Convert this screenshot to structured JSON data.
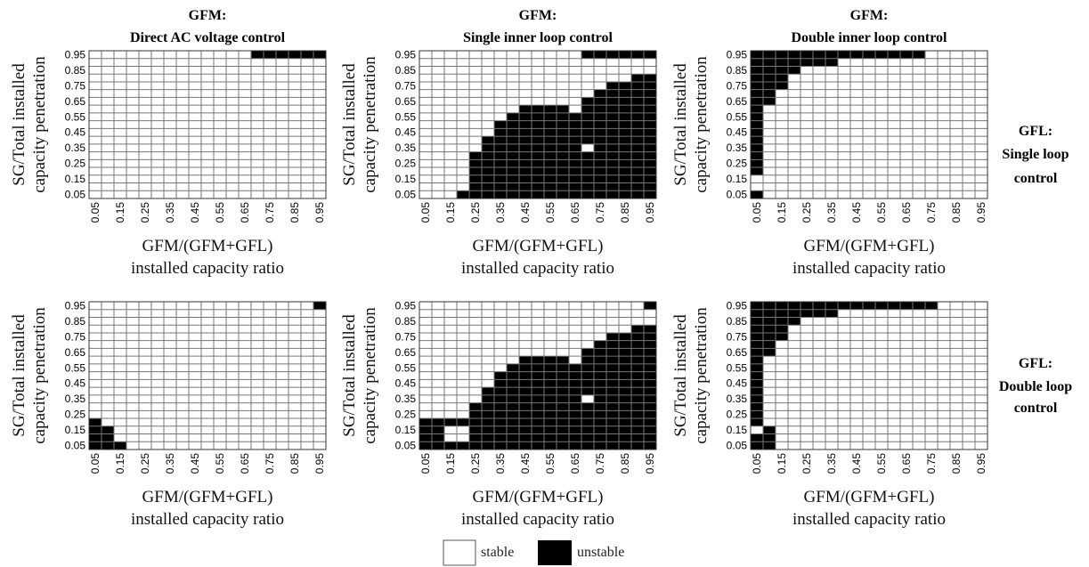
{
  "legend": {
    "stable": "stable",
    "unstable": "unstable"
  },
  "column_titles": [
    {
      "top": "GFM:",
      "bottom": "Direct AC voltage control"
    },
    {
      "top": "GFM:",
      "bottom": "Single inner loop control"
    },
    {
      "top": "GFM:",
      "bottom": "Double inner loop control"
    }
  ],
  "row_titles": [
    {
      "lines": [
        "GFL:",
        "Single loop",
        "control"
      ]
    },
    {
      "lines": [
        "GFL:",
        "Double loop",
        "control"
      ]
    }
  ],
  "colors": {
    "stable": "#ffffff",
    "unstable": "#000000",
    "grid": "#777777"
  },
  "chart_data": [
    {
      "type": "heatmap",
      "row": 0,
      "col": 0,
      "xlabel": "GFM/(GFM+GFL)",
      "xlabel2": "installed capacity ratio",
      "ylabel": "SG/Total installed",
      "ylabel2": "capacity penetration",
      "x": [
        0.05,
        0.1,
        0.15,
        0.2,
        0.25,
        0.3,
        0.35,
        0.4,
        0.45,
        0.5,
        0.55,
        0.6,
        0.65,
        0.7,
        0.75,
        0.8,
        0.85,
        0.9,
        0.95
      ],
      "y": [
        0.05,
        0.1,
        0.15,
        0.2,
        0.25,
        0.3,
        0.35,
        0.4,
        0.45,
        0.5,
        0.55,
        0.6,
        0.65,
        0.7,
        0.75,
        0.8,
        0.85,
        0.9,
        0.95
      ],
      "xticks": [
        "0.05",
        "0.15",
        "0.25",
        "0.35",
        "0.45",
        "0.55",
        "0.65",
        "0.75",
        "0.85",
        "0.95"
      ],
      "yticks": [
        "0.05",
        "0.15",
        "0.25",
        "0.35",
        "0.45",
        "0.55",
        "0.65",
        "0.75",
        "0.85",
        "0.95"
      ],
      "legend": [
        "stable",
        "unstable"
      ],
      "unstable_ranges": [
        [
          0.95,
          0.7,
          0.95
        ]
      ]
    },
    {
      "type": "heatmap",
      "row": 0,
      "col": 1,
      "xlabel": "GFM/(GFM+GFL)",
      "xlabel2": "installed capacity ratio",
      "ylabel": "SG/Total installed",
      "ylabel2": "capacity penetration",
      "x": [
        0.05,
        0.1,
        0.15,
        0.2,
        0.25,
        0.3,
        0.35,
        0.4,
        0.45,
        0.5,
        0.55,
        0.6,
        0.65,
        0.7,
        0.75,
        0.8,
        0.85,
        0.9,
        0.95
      ],
      "y": [
        0.05,
        0.1,
        0.15,
        0.2,
        0.25,
        0.3,
        0.35,
        0.4,
        0.45,
        0.5,
        0.55,
        0.6,
        0.65,
        0.7,
        0.75,
        0.8,
        0.85,
        0.9,
        0.95
      ],
      "xticks": [
        "0.05",
        "0.15",
        "0.25",
        "0.35",
        "0.45",
        "0.55",
        "0.65",
        "0.75",
        "0.85",
        "0.95"
      ],
      "yticks": [
        "0.05",
        "0.15",
        "0.25",
        "0.35",
        "0.45",
        "0.55",
        "0.65",
        "0.75",
        "0.85",
        "0.95"
      ],
      "legend": [
        "stable",
        "unstable"
      ],
      "unstable_ranges": [
        [
          0.95,
          0.7,
          0.95
        ],
        [
          0.8,
          0.9,
          0.95
        ],
        [
          0.75,
          0.8,
          0.95
        ],
        [
          0.7,
          0.75,
          0.95
        ],
        [
          0.65,
          0.7,
          0.95
        ],
        [
          0.6,
          0.45,
          0.6
        ],
        [
          0.6,
          0.7,
          0.95
        ],
        [
          0.55,
          0.4,
          0.65
        ],
        [
          0.55,
          0.7,
          0.95
        ],
        [
          0.5,
          0.35,
          0.65
        ],
        [
          0.5,
          0.7,
          0.95
        ],
        [
          0.45,
          0.35,
          0.95
        ],
        [
          0.4,
          0.3,
          0.95
        ],
        [
          0.35,
          0.3,
          0.65
        ],
        [
          0.35,
          0.75,
          0.95
        ],
        [
          0.3,
          0.25,
          0.95
        ],
        [
          0.25,
          0.25,
          0.95
        ],
        [
          0.2,
          0.25,
          0.95
        ],
        [
          0.15,
          0.25,
          0.95
        ],
        [
          0.1,
          0.25,
          0.95
        ],
        [
          0.05,
          0.2,
          0.95
        ]
      ]
    },
    {
      "type": "heatmap",
      "row": 0,
      "col": 2,
      "xlabel": "GFM/(GFM+GFL)",
      "xlabel2": "installed capacity ratio",
      "ylabel": "SG/Total installed",
      "ylabel2": "capacity penetration",
      "x": [
        0.05,
        0.1,
        0.15,
        0.2,
        0.25,
        0.3,
        0.35,
        0.4,
        0.45,
        0.5,
        0.55,
        0.6,
        0.65,
        0.7,
        0.75,
        0.8,
        0.85,
        0.9,
        0.95
      ],
      "y": [
        0.05,
        0.1,
        0.15,
        0.2,
        0.25,
        0.3,
        0.35,
        0.4,
        0.45,
        0.5,
        0.55,
        0.6,
        0.65,
        0.7,
        0.75,
        0.8,
        0.85,
        0.9,
        0.95
      ],
      "xticks": [
        "0.05",
        "0.15",
        "0.25",
        "0.35",
        "0.45",
        "0.55",
        "0.65",
        "0.75",
        "0.85",
        "0.95"
      ],
      "yticks": [
        "0.05",
        "0.15",
        "0.25",
        "0.35",
        "0.45",
        "0.55",
        "0.65",
        "0.75",
        "0.85",
        "0.95"
      ],
      "legend": [
        "stable",
        "unstable"
      ],
      "unstable_ranges": [
        [
          0.95,
          0.05,
          0.7
        ],
        [
          0.9,
          0.05,
          0.35
        ],
        [
          0.85,
          0.05,
          0.2
        ],
        [
          0.8,
          0.05,
          0.15
        ],
        [
          0.75,
          0.05,
          0.15
        ],
        [
          0.7,
          0.05,
          0.1
        ],
        [
          0.65,
          0.05,
          0.1
        ],
        [
          0.6,
          0.05,
          0.05
        ],
        [
          0.55,
          0.05,
          0.05
        ],
        [
          0.5,
          0.05,
          0.05
        ],
        [
          0.45,
          0.05,
          0.05
        ],
        [
          0.4,
          0.05,
          0.05
        ],
        [
          0.35,
          0.05,
          0.05
        ],
        [
          0.3,
          0.05,
          0.05
        ],
        [
          0.25,
          0.05,
          0.05
        ],
        [
          0.2,
          0.05,
          0.05
        ],
        [
          0.05,
          0.05,
          0.05
        ]
      ]
    },
    {
      "type": "heatmap",
      "row": 1,
      "col": 0,
      "xlabel": "GFM/(GFM+GFL)",
      "xlabel2": "installed capacity ratio",
      "ylabel": "SG/Total installed",
      "ylabel2": "capacity penetration",
      "x": [
        0.05,
        0.1,
        0.15,
        0.2,
        0.25,
        0.3,
        0.35,
        0.4,
        0.45,
        0.5,
        0.55,
        0.6,
        0.65,
        0.7,
        0.75,
        0.8,
        0.85,
        0.9,
        0.95
      ],
      "y": [
        0.05,
        0.1,
        0.15,
        0.2,
        0.25,
        0.3,
        0.35,
        0.4,
        0.45,
        0.5,
        0.55,
        0.6,
        0.65,
        0.7,
        0.75,
        0.8,
        0.85,
        0.9,
        0.95
      ],
      "xticks": [
        "0.05",
        "0.15",
        "0.25",
        "0.35",
        "0.45",
        "0.55",
        "0.65",
        "0.75",
        "0.85",
        "0.95"
      ],
      "yticks": [
        "0.05",
        "0.15",
        "0.25",
        "0.35",
        "0.45",
        "0.55",
        "0.65",
        "0.75",
        "0.85",
        "0.95"
      ],
      "legend": [
        "stable",
        "unstable"
      ],
      "unstable_ranges": [
        [
          0.95,
          0.95,
          0.95
        ],
        [
          0.2,
          0.05,
          0.05
        ],
        [
          0.15,
          0.05,
          0.1
        ],
        [
          0.1,
          0.05,
          0.1
        ],
        [
          0.05,
          0.05,
          0.15
        ]
      ]
    },
    {
      "type": "heatmap",
      "row": 1,
      "col": 1,
      "xlabel": "GFM/(GFM+GFL)",
      "xlabel2": "installed capacity ratio",
      "ylabel": "SG/Total installed",
      "ylabel2": "capacity penetration",
      "x": [
        0.05,
        0.1,
        0.15,
        0.2,
        0.25,
        0.3,
        0.35,
        0.4,
        0.45,
        0.5,
        0.55,
        0.6,
        0.65,
        0.7,
        0.75,
        0.8,
        0.85,
        0.9,
        0.95
      ],
      "y": [
        0.05,
        0.1,
        0.15,
        0.2,
        0.25,
        0.3,
        0.35,
        0.4,
        0.45,
        0.5,
        0.55,
        0.6,
        0.65,
        0.7,
        0.75,
        0.8,
        0.85,
        0.9,
        0.95
      ],
      "xticks": [
        "0.05",
        "0.15",
        "0.25",
        "0.35",
        "0.45",
        "0.55",
        "0.65",
        "0.75",
        "0.85",
        "0.95"
      ],
      "yticks": [
        "0.05",
        "0.15",
        "0.25",
        "0.35",
        "0.45",
        "0.55",
        "0.65",
        "0.75",
        "0.85",
        "0.95"
      ],
      "legend": [
        "stable",
        "unstable"
      ],
      "unstable_ranges": [
        [
          0.95,
          0.95,
          0.95
        ],
        [
          0.8,
          0.9,
          0.95
        ],
        [
          0.75,
          0.8,
          0.95
        ],
        [
          0.7,
          0.75,
          0.95
        ],
        [
          0.65,
          0.7,
          0.95
        ],
        [
          0.6,
          0.45,
          0.6
        ],
        [
          0.6,
          0.7,
          0.95
        ],
        [
          0.55,
          0.4,
          0.65
        ],
        [
          0.55,
          0.7,
          0.95
        ],
        [
          0.5,
          0.35,
          0.65
        ],
        [
          0.5,
          0.7,
          0.95
        ],
        [
          0.45,
          0.35,
          0.95
        ],
        [
          0.4,
          0.3,
          0.95
        ],
        [
          0.35,
          0.3,
          0.65
        ],
        [
          0.35,
          0.75,
          0.95
        ],
        [
          0.3,
          0.25,
          0.95
        ],
        [
          0.25,
          0.25,
          0.95
        ],
        [
          0.2,
          0.05,
          0.95
        ],
        [
          0.15,
          0.05,
          0.1
        ],
        [
          0.15,
          0.25,
          0.95
        ],
        [
          0.1,
          0.05,
          0.1
        ],
        [
          0.1,
          0.25,
          0.95
        ],
        [
          0.05,
          0.05,
          0.95
        ]
      ]
    },
    {
      "type": "heatmap",
      "row": 1,
      "col": 2,
      "xlabel": "GFM/(GFM+GFL)",
      "xlabel2": "installed capacity ratio",
      "ylabel": "SG/Total installed",
      "ylabel2": "capacity penetration",
      "x": [
        0.05,
        0.1,
        0.15,
        0.2,
        0.25,
        0.3,
        0.35,
        0.4,
        0.45,
        0.5,
        0.55,
        0.6,
        0.65,
        0.7,
        0.75,
        0.8,
        0.85,
        0.9,
        0.95
      ],
      "y": [
        0.05,
        0.1,
        0.15,
        0.2,
        0.25,
        0.3,
        0.35,
        0.4,
        0.45,
        0.5,
        0.55,
        0.6,
        0.65,
        0.7,
        0.75,
        0.8,
        0.85,
        0.9,
        0.95
      ],
      "xticks": [
        "0.05",
        "0.15",
        "0.25",
        "0.35",
        "0.45",
        "0.55",
        "0.65",
        "0.75",
        "0.85",
        "0.95"
      ],
      "yticks": [
        "0.05",
        "0.15",
        "0.25",
        "0.35",
        "0.45",
        "0.55",
        "0.65",
        "0.75",
        "0.85",
        "0.95"
      ],
      "legend": [
        "stable",
        "unstable"
      ],
      "unstable_ranges": [
        [
          0.95,
          0.05,
          0.75
        ],
        [
          0.9,
          0.05,
          0.35
        ],
        [
          0.85,
          0.05,
          0.2
        ],
        [
          0.8,
          0.05,
          0.15
        ],
        [
          0.75,
          0.05,
          0.15
        ],
        [
          0.7,
          0.05,
          0.1
        ],
        [
          0.65,
          0.05,
          0.1
        ],
        [
          0.6,
          0.05,
          0.05
        ],
        [
          0.55,
          0.05,
          0.05
        ],
        [
          0.5,
          0.05,
          0.05
        ],
        [
          0.45,
          0.05,
          0.05
        ],
        [
          0.4,
          0.05,
          0.05
        ],
        [
          0.35,
          0.05,
          0.05
        ],
        [
          0.3,
          0.05,
          0.05
        ],
        [
          0.25,
          0.05,
          0.05
        ],
        [
          0.2,
          0.05,
          0.05
        ],
        [
          0.15,
          0.1,
          0.1
        ],
        [
          0.1,
          0.05,
          0.1
        ],
        [
          0.05,
          0.05,
          0.1
        ]
      ]
    }
  ]
}
